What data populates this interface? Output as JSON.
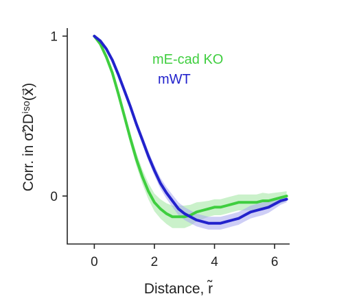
{
  "chart_data": {
    "type": "line",
    "xlabel": "Distance, r̃",
    "ylabel": "Corr. in σ̃2Dⁱˢᵒ(x⃗)",
    "xlim": [
      -0.9,
      6.5
    ],
    "ylim": [
      -0.3,
      1.05
    ],
    "x_ticks": [
      "0",
      "2",
      "4",
      "6"
    ],
    "x_tick_values": [
      0,
      2,
      4,
      6
    ],
    "y_ticks": [
      "0",
      "1"
    ],
    "y_tick_values": [
      0,
      1
    ],
    "grid": false,
    "legend_position": "top-right",
    "series": [
      {
        "name": "mE-cad KO",
        "color": "#3fce3f",
        "band_color": "#9fe69f",
        "x": [
          0.0,
          0.2,
          0.4,
          0.6,
          0.8,
          1.0,
          1.2,
          1.4,
          1.6,
          1.8,
          2.0,
          2.2,
          2.4,
          2.6,
          2.8,
          3.0,
          3.2,
          3.4,
          3.6,
          3.8,
          4.0,
          4.2,
          4.4,
          4.6,
          4.8,
          5.0,
          5.2,
          5.4,
          5.6,
          5.8,
          6.0,
          6.2,
          6.4
        ],
        "y": [
          1.0,
          0.95,
          0.87,
          0.77,
          0.64,
          0.5,
          0.36,
          0.23,
          0.12,
          0.03,
          -0.04,
          -0.08,
          -0.11,
          -0.13,
          -0.13,
          -0.13,
          -0.12,
          -0.1,
          -0.09,
          -0.08,
          -0.07,
          -0.07,
          -0.06,
          -0.05,
          -0.04,
          -0.04,
          -0.04,
          -0.04,
          -0.03,
          -0.03,
          -0.02,
          -0.01,
          0.0
        ],
        "band": [
          0.0,
          0.01,
          0.015,
          0.02,
          0.025,
          0.03,
          0.035,
          0.04,
          0.045,
          0.05,
          0.055,
          0.06,
          0.065,
          0.07,
          0.07,
          0.07,
          0.065,
          0.06,
          0.055,
          0.05,
          0.05,
          0.05,
          0.05,
          0.05,
          0.05,
          0.05,
          0.05,
          0.05,
          0.05,
          0.045,
          0.04,
          0.035,
          0.03
        ]
      },
      {
        "name": "mWT",
        "color": "#2222cc",
        "band_color": "#a6a6ee",
        "x": [
          0.0,
          0.2,
          0.4,
          0.6,
          0.8,
          1.0,
          1.2,
          1.4,
          1.6,
          1.8,
          2.0,
          2.2,
          2.4,
          2.6,
          2.8,
          3.0,
          3.2,
          3.4,
          3.6,
          3.8,
          4.0,
          4.2,
          4.4,
          4.6,
          4.8,
          5.0,
          5.2,
          5.4,
          5.6,
          5.8,
          6.0,
          6.2,
          6.4
        ],
        "y": [
          1.0,
          0.97,
          0.92,
          0.85,
          0.76,
          0.66,
          0.56,
          0.45,
          0.35,
          0.25,
          0.16,
          0.08,
          0.02,
          -0.03,
          -0.08,
          -0.11,
          -0.13,
          -0.15,
          -0.16,
          -0.17,
          -0.17,
          -0.17,
          -0.16,
          -0.15,
          -0.14,
          -0.12,
          -0.1,
          -0.09,
          -0.08,
          -0.07,
          -0.05,
          -0.03,
          -0.02
        ],
        "band": [
          0.0,
          0.01,
          0.012,
          0.015,
          0.018,
          0.02,
          0.022,
          0.025,
          0.028,
          0.03,
          0.032,
          0.034,
          0.036,
          0.038,
          0.04,
          0.04,
          0.04,
          0.04,
          0.04,
          0.04,
          0.04,
          0.04,
          0.04,
          0.04,
          0.04,
          0.04,
          0.04,
          0.04,
          0.04,
          0.035,
          0.03,
          0.025,
          0.02
        ]
      }
    ]
  }
}
